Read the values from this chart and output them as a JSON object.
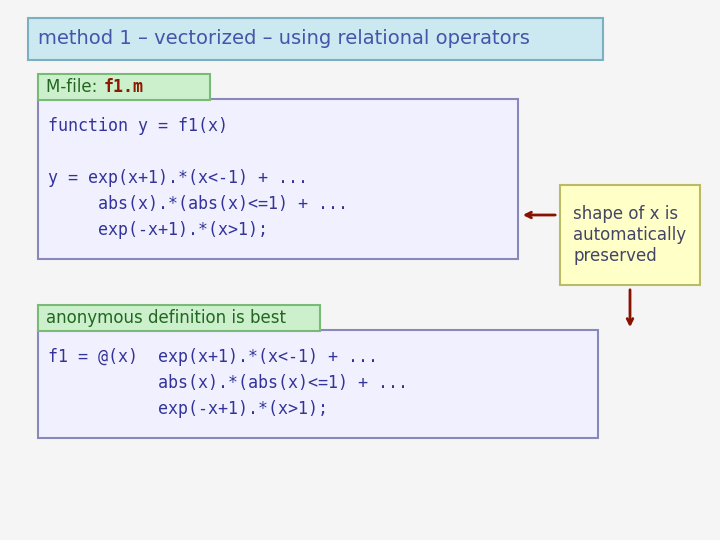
{
  "title": "method 1 – vectorized – using relational operators",
  "title_bg": "#cce8f0",
  "title_border": "#7ab0c0",
  "title_text_color": "#4455aa",
  "mfile_label": "M-file: ",
  "mfile_label_color": "#226622",
  "mfile_name": "f1.m",
  "mfile_name_color": "#8b1a00",
  "mfile_bg": "#ccf0cc",
  "mfile_border": "#77bb77",
  "code_block1_bg": "#f0f0ff",
  "code_block1_border": "#8888bb",
  "code_block1_lines": [
    "function y = f1(x)",
    "",
    "y = exp(x+1).*(x<-1) + ...",
    "     abs(x).*(abs(x)<=1) + ...",
    "     exp(-x+1).*(x>1);"
  ],
  "code_text_color": "#333399",
  "anon_label": "anonymous definition is best",
  "anon_bg": "#ccf0cc",
  "anon_border": "#77bb77",
  "anon_text_color": "#226622",
  "code_block2_bg": "#f0f0ff",
  "code_block2_border": "#8888bb",
  "code_block2_lines": [
    "f1 = @(x)  exp(x+1).*(x<-1) + ...",
    "           abs(x).*(abs(x)<=1) + ...",
    "           exp(-x+1).*(x>1);"
  ],
  "note_bg": "#ffffc8",
  "note_border": "#bbbb66",
  "note_text": "shape of x is\nautomatically\npreserved",
  "note_text_color": "#444466",
  "arrow_color": "#881100",
  "bg_color": "#f5f5f5"
}
